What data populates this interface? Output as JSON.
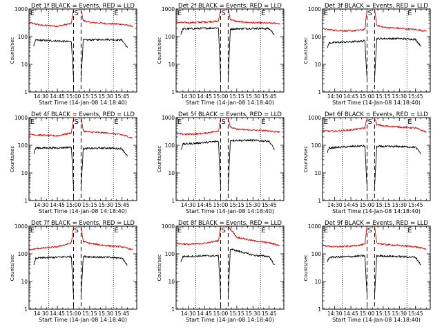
{
  "chart_data": [
    {
      "type": "line",
      "detector": "1f",
      "title": "Det 1f BLACK = Events, RED = LLD",
      "xlabel": "Start Time (14-Jan-08 14:18:40)",
      "ylabel": "Counts/sec",
      "ylog": true,
      "ylim": [
        1,
        1000
      ],
      "x_ticks": [
        "14:30",
        "14:45",
        "15:00",
        "15:15",
        "15:30",
        "15:45"
      ],
      "y_ticks": [
        "1",
        "10",
        "100",
        "1000"
      ],
      "markers": [
        {
          "label": "E",
          "x": "14:19"
        },
        {
          "label": "S",
          "x": "15:00"
        },
        {
          "label": "E",
          "x": "15:37"
        }
      ],
      "dashed_lines": [
        "15:00",
        "15:07"
      ],
      "dotted_lines": [
        "14:37",
        "15:37"
      ],
      "series": [
        {
          "color": "#e00000",
          "gap": [
            "15:00",
            "15:07"
          ],
          "values_x": [
            "14:19",
            "14:30",
            "14:45",
            "14:58",
            "15:00",
            "15:07",
            "15:09",
            "15:15",
            "15:30",
            "15:45",
            "15:55"
          ],
          "values_y": [
            320,
            260,
            240,
            300,
            1000,
            1000,
            380,
            330,
            300,
            280,
            240
          ]
        },
        {
          "color": "#000000",
          "gap": [
            "15:00",
            "15:07"
          ],
          "values_x": [
            "14:23",
            "14:25",
            "14:45",
            "14:58",
            "15:00",
            "15:07",
            "15:09",
            "15:30",
            "15:45",
            "15:50"
          ],
          "values_y": [
            45,
            75,
            70,
            65,
            3,
            3,
            75,
            80,
            75,
            40
          ]
        }
      ]
    },
    {
      "type": "line",
      "detector": "2f",
      "title": "Det 2f BLACK = Events, RED = LLD",
      "xlabel": "Start Time (14-Jan-08 14:18:40)",
      "ylabel": "Counts/sec",
      "ylog": true,
      "ylim": [
        1,
        1000
      ],
      "x_ticks": [
        "14:30",
        "14:45",
        "15:00",
        "15:15",
        "15:30",
        "15:45"
      ],
      "y_ticks": [
        "1",
        "10",
        "100",
        "1000"
      ],
      "markers": [
        {
          "label": "E",
          "x": "14:19"
        },
        {
          "label": "S",
          "x": "15:00"
        },
        {
          "label": "E",
          "x": "15:37"
        }
      ],
      "dashed_lines": [
        "15:00",
        "15:07"
      ],
      "dotted_lines": [
        "14:37",
        "15:37"
      ],
      "series": [
        {
          "color": "#e00000",
          "gap": [
            "15:00",
            "15:07"
          ],
          "values_x": [
            "14:19",
            "14:30",
            "14:45",
            "14:58",
            "15:00",
            "15:07",
            "15:09",
            "15:15",
            "15:30",
            "15:45",
            "15:55"
          ],
          "values_y": [
            330,
            320,
            340,
            360,
            1000,
            1000,
            420,
            350,
            320,
            310,
            300
          ]
        },
        {
          "color": "#000000",
          "gap": [
            "15:00",
            "15:07"
          ],
          "values_x": [
            "14:23",
            "14:25",
            "14:45",
            "14:58",
            "15:00",
            "15:07",
            "15:09",
            "15:30",
            "15:45",
            "15:50"
          ],
          "values_y": [
            120,
            190,
            200,
            210,
            3,
            3,
            190,
            200,
            195,
            120
          ]
        }
      ]
    },
    {
      "type": "line",
      "detector": "3f",
      "title": "Det 3f BLACK = Events, RED = LLD",
      "xlabel": "Start Time (14-Jan-08 14:18:40)",
      "ylabel": "Counts/sec",
      "ylog": true,
      "ylim": [
        1,
        1000
      ],
      "x_ticks": [
        "14:30",
        "14:45",
        "15:00",
        "15:15",
        "15:30",
        "15:45"
      ],
      "y_ticks": [
        "1",
        "10",
        "100",
        "1000"
      ],
      "markers": [
        {
          "label": "E",
          "x": "14:19"
        },
        {
          "label": "S",
          "x": "15:00"
        },
        {
          "label": "E",
          "x": "15:37"
        }
      ],
      "dashed_lines": [
        "15:00",
        "15:07"
      ],
      "dotted_lines": [
        "14:37",
        "15:37"
      ],
      "series": [
        {
          "color": "#e00000",
          "gap": [
            "15:00",
            "15:07"
          ],
          "values_x": [
            "14:19",
            "14:30",
            "14:45",
            "14:58",
            "15:00",
            "15:07",
            "15:09",
            "15:15",
            "15:30",
            "15:45",
            "15:55"
          ],
          "values_y": [
            190,
            170,
            160,
            180,
            1000,
            1000,
            260,
            220,
            200,
            180,
            160
          ]
        },
        {
          "color": "#000000",
          "gap": [
            "15:00",
            "15:07"
          ],
          "values_x": [
            "14:23",
            "14:25",
            "14:45",
            "14:58",
            "15:00",
            "15:07",
            "15:09",
            "15:30",
            "15:45",
            "15:50"
          ],
          "values_y": [
            40,
            60,
            65,
            70,
            3,
            3,
            85,
            85,
            80,
            45
          ]
        }
      ]
    },
    {
      "type": "line",
      "detector": "4f",
      "title": "Det 4f BLACK = Events, RED = LLD",
      "xlabel": "Start Time (14-Jan-08 14:18:40)",
      "ylabel": "Counts/sec",
      "ylog": true,
      "ylim": [
        1,
        1000
      ],
      "x_ticks": [
        "14:30",
        "14:45",
        "15:00",
        "15:15",
        "15:30",
        "15:45"
      ],
      "y_ticks": [
        "1",
        "10",
        "100",
        "1000"
      ],
      "markers": [
        {
          "label": "E",
          "x": "14:19"
        },
        {
          "label": "S",
          "x": "15:00"
        },
        {
          "label": "E",
          "x": "15:37"
        }
      ],
      "dashed_lines": [
        "15:00",
        "15:07"
      ],
      "dotted_lines": [
        "14:37",
        "15:37"
      ],
      "series": [
        {
          "color": "#e00000",
          "gap": [
            "15:00",
            "15:07"
          ],
          "values_x": [
            "14:19",
            "14:30",
            "14:45",
            "14:58",
            "15:00",
            "15:07",
            "15:09",
            "15:15",
            "15:30",
            "15:45",
            "15:55"
          ],
          "values_y": [
            250,
            230,
            220,
            280,
            1000,
            1000,
            330,
            300,
            280,
            240,
            180
          ]
        },
        {
          "color": "#000000",
          "gap": [
            "15:00",
            "15:07"
          ],
          "values_x": [
            "14:23",
            "14:25",
            "14:45",
            "14:58",
            "15:00",
            "15:07",
            "15:09",
            "15:30",
            "15:45",
            "15:50"
          ],
          "values_y": [
            50,
            80,
            80,
            85,
            3,
            3,
            75,
            80,
            75,
            40
          ]
        }
      ]
    },
    {
      "type": "line",
      "detector": "5f",
      "title": "Det 5f BLACK = Events, RED = LLD",
      "xlabel": "Start Time (14-Jan-08 14:18:40)",
      "ylabel": "Counts/sec",
      "ylog": true,
      "ylim": [
        1,
        1000
      ],
      "x_ticks": [
        "14:30",
        "14:45",
        "15:00",
        "15:15",
        "15:30",
        "15:45"
      ],
      "y_ticks": [
        "1",
        "10",
        "100",
        "1000"
      ],
      "markers": [
        {
          "label": "E",
          "x": "14:19"
        },
        {
          "label": "S",
          "x": "15:00"
        },
        {
          "label": "E",
          "x": "15:37"
        }
      ],
      "dashed_lines": [
        "15:00",
        "15:07"
      ],
      "dotted_lines": [
        "14:37",
        "15:37"
      ],
      "series": [
        {
          "color": "#e00000",
          "gap": [
            "15:00",
            "15:07"
          ],
          "values_x": [
            "14:19",
            "14:30",
            "14:45",
            "14:58",
            "15:00",
            "15:07",
            "15:09",
            "15:15",
            "15:30",
            "15:45",
            "15:55"
          ],
          "values_y": [
            260,
            250,
            270,
            330,
            1000,
            1000,
            450,
            380,
            350,
            330,
            300
          ]
        },
        {
          "color": "#000000",
          "gap": [
            "15:00",
            "15:07"
          ],
          "values_x": [
            "14:23",
            "14:25",
            "14:45",
            "14:58",
            "15:00",
            "15:07",
            "15:09",
            "15:30",
            "15:45",
            "15:50"
          ],
          "values_y": [
            70,
            110,
            125,
            140,
            3,
            3,
            150,
            150,
            140,
            70
          ]
        }
      ]
    },
    {
      "type": "line",
      "detector": "6f",
      "title": "Det 6f BLACK = Events, RED = LLD",
      "xlabel": "Start Time (14-Jan-08 14:18:40)",
      "ylabel": "Counts/sec",
      "ylog": true,
      "ylim": [
        1,
        1000
      ],
      "x_ticks": [
        "14:30",
        "14:45",
        "15:00",
        "15:15",
        "15:30",
        "15:45"
      ],
      "y_ticks": [
        "1",
        "10",
        "100",
        "1000"
      ],
      "markers": [
        {
          "label": "E",
          "x": "14:19"
        },
        {
          "label": "S",
          "x": "15:00"
        },
        {
          "label": "E",
          "x": "15:37"
        }
      ],
      "dashed_lines": [
        "15:00",
        "15:07"
      ],
      "dotted_lines": [
        "14:37",
        "15:37"
      ],
      "series": [
        {
          "color": "#e00000",
          "gap": [
            "15:00",
            "15:07"
          ],
          "values_x": [
            "14:19",
            "14:30",
            "14:45",
            "14:58",
            "15:00",
            "15:07",
            "15:09",
            "15:15",
            "15:30",
            "15:45",
            "15:55"
          ],
          "values_y": [
            330,
            320,
            360,
            420,
            1000,
            1000,
            560,
            500,
            460,
            420,
            300
          ]
        },
        {
          "color": "#000000",
          "gap": [
            "15:00",
            "15:07"
          ],
          "values_x": [
            "14:23",
            "14:25",
            "14:45",
            "14:58",
            "15:00",
            "15:07",
            "15:09",
            "15:30",
            "15:45",
            "15:50"
          ],
          "values_y": [
            55,
            80,
            90,
            95,
            3,
            3,
            90,
            90,
            85,
            50
          ]
        }
      ]
    },
    {
      "type": "line",
      "detector": "7f",
      "title": "Det 7f BLACK = Events, RED = LLD",
      "xlabel": "Start Time (14-Jan-08 14:18:40)",
      "ylabel": "Counts/sec",
      "ylog": true,
      "ylim": [
        1,
        1000
      ],
      "x_ticks": [
        "14:30",
        "14:45",
        "15:00",
        "15:15",
        "15:30",
        "15:45"
      ],
      "y_ticks": [
        "1",
        "10",
        "100",
        "1000"
      ],
      "markers": [
        {
          "label": "E",
          "x": "14:19"
        },
        {
          "label": "S",
          "x": "15:00"
        },
        {
          "label": "E",
          "x": "15:37"
        }
      ],
      "dashed_lines": [
        "15:00",
        "15:07"
      ],
      "dotted_lines": [
        "14:37",
        "15:37"
      ],
      "series": [
        {
          "color": "#e00000",
          "gap": [
            "15:00",
            "15:07"
          ],
          "values_x": [
            "14:19",
            "14:30",
            "14:45",
            "14:58",
            "15:00",
            "15:07",
            "15:09",
            "15:15",
            "15:30",
            "15:45",
            "15:55"
          ],
          "values_y": [
            140,
            160,
            180,
            250,
            1000,
            1000,
            280,
            240,
            200,
            180,
            140
          ]
        },
        {
          "color": "#000000",
          "gap": [
            "15:00",
            "15:07"
          ],
          "values_x": [
            "14:23",
            "14:25",
            "14:45",
            "14:58",
            "15:00",
            "15:07",
            "15:09",
            "15:30",
            "15:45",
            "15:50"
          ],
          "values_y": [
            40,
            70,
            75,
            80,
            3,
            3,
            80,
            75,
            70,
            40
          ]
        }
      ]
    },
    {
      "type": "line",
      "detector": "8f",
      "title": "Det 8f BLACK = Events, RED = LLD",
      "xlabel": "Start Time (14-Jan-08 14:18:40)",
      "ylabel": "Counts/sec",
      "ylog": true,
      "ylim": [
        1,
        1000
      ],
      "x_ticks": [
        "14:30",
        "14:45",
        "15:00",
        "15:15",
        "15:30",
        "15:45"
      ],
      "y_ticks": [
        "1",
        "10",
        "100",
        "1000"
      ],
      "markers": [
        {
          "label": "E",
          "x": "14:19"
        },
        {
          "label": "S",
          "x": "15:00"
        },
        {
          "label": "E",
          "x": "15:37"
        }
      ],
      "dashed_lines": [
        "15:00",
        "15:07"
      ],
      "dotted_lines": [
        "14:37",
        "15:37"
      ],
      "series": [
        {
          "color": "#e00000",
          "gap": [
            "15:00",
            "15:07"
          ],
          "values_x": [
            "14:19",
            "14:30",
            "14:45",
            "14:58",
            "15:00",
            "15:07",
            "15:09",
            "15:15",
            "15:30",
            "15:45",
            "15:55"
          ],
          "values_y": [
            240,
            220,
            240,
            300,
            1000,
            1000,
            800,
            400,
            300,
            250,
            200
          ]
        },
        {
          "color": "#000000",
          "gap": [
            "15:00",
            "15:07"
          ],
          "values_x": [
            "14:23",
            "14:25",
            "14:45",
            "14:58",
            "15:00",
            "15:07",
            "15:09",
            "15:30",
            "15:45",
            "15:50"
          ],
          "values_y": [
            50,
            80,
            85,
            85,
            3,
            3,
            150,
            90,
            80,
            40
          ]
        }
      ]
    },
    {
      "type": "line",
      "detector": "9f",
      "title": "Det 9f BLACK = Events, RED = LLD",
      "xlabel": "Start Time (14-Jan-08 14:18:40)",
      "ylabel": "Counts/sec",
      "ylog": true,
      "ylim": [
        1,
        1000
      ],
      "x_ticks": [
        "14:30",
        "14:45",
        "15:00",
        "15:15",
        "15:30",
        "15:45"
      ],
      "y_ticks": [
        "1",
        "10",
        "100",
        "1000"
      ],
      "markers": [
        {
          "label": "E",
          "x": "14:19"
        },
        {
          "label": "S",
          "x": "15:00"
        },
        {
          "label": "E",
          "x": "15:37"
        }
      ],
      "dashed_lines": [
        "15:00",
        "15:07"
      ],
      "dotted_lines": [
        "14:37",
        "15:37"
      ],
      "series": [
        {
          "color": "#e00000",
          "gap": [
            "15:00",
            "15:07"
          ],
          "values_x": [
            "14:19",
            "14:30",
            "14:45",
            "14:58",
            "15:00",
            "15:07",
            "15:09",
            "15:15",
            "15:30",
            "15:45",
            "15:55"
          ],
          "values_y": [
            200,
            180,
            190,
            220,
            1000,
            1000,
            250,
            220,
            200,
            180,
            150
          ]
        },
        {
          "color": "#000000",
          "gap": [
            "15:00",
            "15:07"
          ],
          "values_x": [
            "14:23",
            "14:25",
            "14:45",
            "14:58",
            "15:00",
            "15:07",
            "15:09",
            "15:30",
            "15:45",
            "15:50"
          ],
          "values_y": [
            50,
            75,
            80,
            85,
            3,
            3,
            85,
            80,
            75,
            40
          ]
        }
      ]
    }
  ]
}
